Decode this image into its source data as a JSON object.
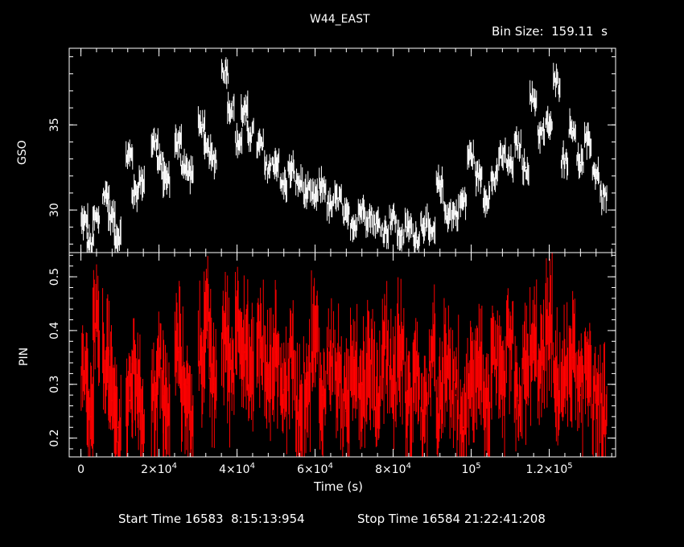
{
  "title": "W44_EAST",
  "bin_size_label": "Bin Size:  159.11  s",
  "footer": {
    "start_time": "Start Time 16583  8:15:13:954",
    "stop_time": "Stop Time 16584 21:22:41:208"
  },
  "colors": {
    "background": "#000000",
    "axes": "#ffffff",
    "gso": "#ffffff",
    "pin": "#ff0000"
  },
  "chart_data": [
    {
      "type": "line",
      "panel": "top",
      "ylabel": "GSO",
      "xlim": [
        -3000,
        137000
      ],
      "ylim": [
        27.5,
        39.5
      ],
      "yticks": [
        30,
        35
      ],
      "yticklabels": [
        "30",
        "35"
      ],
      "series": [
        {
          "x": [
            1000,
            2500,
            4000,
            6500,
            8000,
            9500,
            12500,
            14000,
            15500,
            19000,
            20500,
            22000,
            25000,
            26500,
            28000,
            31000,
            32500,
            34000,
            37000,
            38500,
            40500,
            42000,
            43500,
            46000,
            48000,
            50000,
            52000,
            54000,
            56000,
            58000,
            60000,
            62000,
            64000,
            66000,
            68000,
            70000,
            72000,
            74000,
            76000,
            78000,
            80000,
            82000,
            84000,
            86000,
            88000,
            90000,
            92000,
            94000,
            96000,
            98000,
            100000,
            102000,
            104000,
            106000,
            108000,
            110000,
            112000,
            114000,
            116000,
            118000,
            120000,
            122000,
            124000,
            126000,
            128000,
            130000,
            132000,
            134000
          ],
          "y": [
            29.3,
            28.0,
            29.5,
            30.9,
            29.6,
            28.5,
            33.2,
            31.0,
            31.7,
            34.0,
            32.7,
            31.8,
            34.0,
            32.7,
            32.2,
            35.0,
            33.5,
            33.0,
            38.2,
            36.0,
            34.0,
            35.8,
            34.5,
            33.8,
            32.5,
            32.8,
            31.5,
            32.3,
            31.6,
            31.0,
            30.8,
            31.4,
            30.2,
            30.7,
            29.6,
            29.2,
            30.0,
            29.6,
            29.2,
            28.8,
            29.5,
            28.5,
            29.0,
            28.4,
            29.2,
            28.6,
            31.5,
            29.8,
            29.8,
            30.5,
            33.2,
            32.0,
            30.8,
            31.8,
            33.2,
            32.7,
            33.8,
            32.5,
            36.5,
            34.5,
            35.0,
            37.5,
            33.0,
            34.8,
            32.8,
            34.0,
            32.2,
            30.8
          ]
        }
      ]
    },
    {
      "type": "line",
      "panel": "bottom",
      "ylabel": "PIN",
      "xlabel": "Time (s)",
      "xlim": [
        -3000,
        137000
      ],
      "ylim": [
        0.165,
        0.545
      ],
      "yticks": [
        0.2,
        0.3,
        0.4,
        0.5
      ],
      "yticklabels": [
        "0.2",
        "0.3",
        "0.4",
        "0.5"
      ],
      "xticks": [
        0,
        20000,
        40000,
        60000,
        80000,
        100000,
        120000
      ],
      "xticklabels": [
        {
          "base": "0",
          "exp": ""
        },
        {
          "base": "2×10",
          "exp": "4"
        },
        {
          "base": "4×10",
          "exp": "4"
        },
        {
          "base": "6×10",
          "exp": "4"
        },
        {
          "base": "8×10",
          "exp": "4"
        },
        {
          "base": "10",
          "exp": "5"
        },
        {
          "base": "1.2×10",
          "exp": "5"
        }
      ],
      "series": [
        {
          "x": [
            1000,
            2500,
            4000,
            6500,
            8000,
            9500,
            12500,
            14000,
            15500,
            19000,
            20500,
            22000,
            25000,
            26500,
            28000,
            31000,
            32500,
            34000,
            37000,
            38500,
            40500,
            42000,
            43500,
            46000,
            48000,
            50000,
            52000,
            54000,
            56000,
            58000,
            60000,
            62000,
            64000,
            66000,
            68000,
            70000,
            72000,
            74000,
            76000,
            78000,
            80000,
            82000,
            84000,
            86000,
            88000,
            90000,
            92000,
            94000,
            96000,
            98000,
            100000,
            102000,
            104000,
            106000,
            108000,
            110000,
            112000,
            114000,
            116000,
            118000,
            120000,
            122000,
            124000,
            126000,
            128000,
            130000,
            132000,
            134000
          ],
          "y": [
            0.3,
            0.24,
            0.4,
            0.35,
            0.27,
            0.22,
            0.27,
            0.32,
            0.25,
            0.28,
            0.33,
            0.24,
            0.36,
            0.3,
            0.25,
            0.36,
            0.4,
            0.3,
            0.39,
            0.33,
            0.42,
            0.36,
            0.32,
            0.38,
            0.31,
            0.36,
            0.29,
            0.34,
            0.26,
            0.3,
            0.38,
            0.28,
            0.36,
            0.31,
            0.25,
            0.35,
            0.3,
            0.33,
            0.28,
            0.37,
            0.31,
            0.36,
            0.26,
            0.32,
            0.24,
            0.34,
            0.26,
            0.33,
            0.28,
            0.22,
            0.3,
            0.35,
            0.26,
            0.33,
            0.29,
            0.37,
            0.27,
            0.32,
            0.36,
            0.34,
            0.4,
            0.3,
            0.31,
            0.35,
            0.28,
            0.34,
            0.27,
            0.24
          ]
        }
      ]
    }
  ]
}
